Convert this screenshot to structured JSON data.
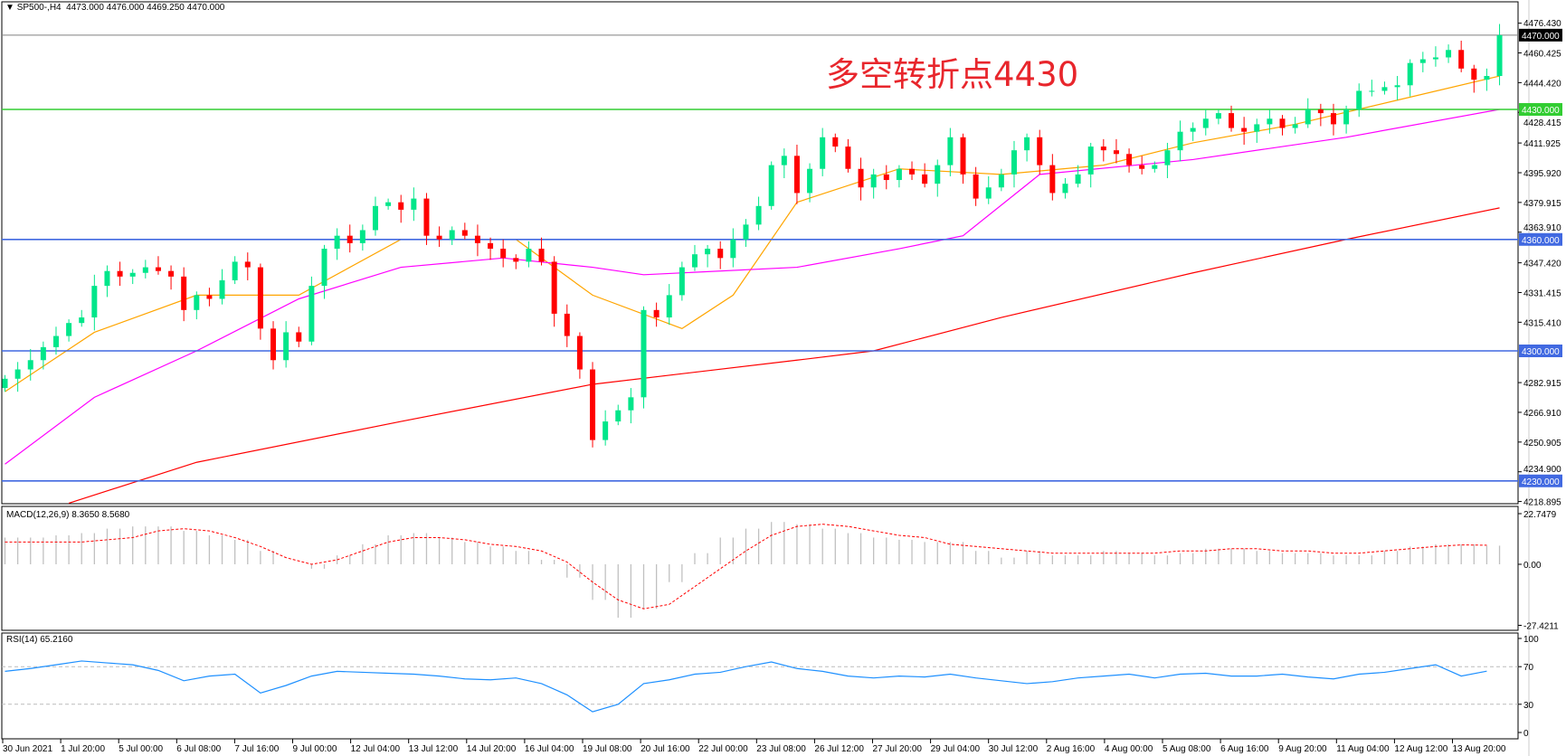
{
  "header": {
    "symbol": "SP500-,H4",
    "ohlc": "4473.000 4476.000 4469.250 4470.000",
    "collapse_icon": "triangle-down-icon"
  },
  "annotation": "多空转折点4430",
  "colors": {
    "bull": "#00e68a",
    "bear": "#ff0000",
    "ma_fast": "#ffa500",
    "ma_mid": "#ff00ff",
    "ma_slow": "#ff0000",
    "support_line": "#32cd32",
    "level_line": "#4169e1",
    "current_price": "#000000",
    "macd_hist": "#c0c0c0",
    "macd_signal": "#ff0000",
    "rsi": "#1e90ff"
  },
  "chart_data": [
    {
      "type": "candlestick",
      "title": "SP500-,H4",
      "ylim": [
        4218.895,
        4476.43
      ],
      "first_open": 4280,
      "close": [
        4285,
        4290,
        4295,
        4302,
        4308,
        4315,
        4318,
        4335,
        4343,
        4340,
        4342,
        4345,
        4343,
        4340,
        4322,
        4330,
        4328,
        4338,
        4348,
        4345,
        4312,
        4295,
        4310,
        4305,
        4335,
        4355,
        4362,
        4358,
        4365,
        4378,
        4380,
        4376,
        4382,
        4362,
        4360,
        4365,
        4362,
        4358,
        4355,
        4350,
        4348,
        4355,
        4348,
        4320,
        4308,
        4290,
        4252,
        4262,
        4268,
        4275,
        4322,
        4318,
        4330,
        4345,
        4352,
        4355,
        4350,
        4360,
        4368,
        4378,
        4400,
        4405,
        4385,
        4398,
        4415,
        4410,
        4398,
        4388,
        4395,
        4392,
        4398,
        4395,
        4390,
        4400,
        4415,
        4395,
        4382,
        4388,
        4395,
        4408,
        4415,
        4400,
        4385,
        4390,
        4395,
        4410,
        4408,
        4406,
        4400,
        4398,
        4400,
        4408,
        4418,
        4420,
        4425,
        4428,
        4420,
        4418,
        4422,
        4425,
        4420,
        4422,
        4430,
        4428,
        4422,
        4430,
        4440,
        4440,
        4442,
        4443,
        4455,
        4457,
        4458,
        4462,
        4452,
        4446,
        4448,
        4470
      ],
      "moving_averages": [
        {
          "key": "ma_fast",
          "points": [
            [
              0,
              4278
            ],
            [
              7,
              4310
            ],
            [
              15,
              4330
            ],
            [
              23,
              4330
            ],
            [
              31,
              4360
            ],
            [
              40,
              4360
            ],
            [
              46,
              4330
            ],
            [
              53,
              4312
            ],
            [
              57,
              4330
            ],
            [
              62,
              4380
            ],
            [
              70,
              4398
            ],
            [
              78,
              4395
            ],
            [
              86,
              4400
            ],
            [
              93,
              4412
            ],
            [
              101,
              4422
            ],
            [
              109,
              4435
            ],
            [
              117,
              4448
            ]
          ]
        },
        {
          "key": "ma_mid",
          "points": [
            [
              0,
              4239
            ],
            [
              7,
              4275
            ],
            [
              15,
              4300
            ],
            [
              23,
              4328
            ],
            [
              31,
              4345
            ],
            [
              39,
              4350
            ],
            [
              46,
              4345
            ],
            [
              50,
              4341
            ],
            [
              62,
              4345
            ],
            [
              70,
              4355
            ],
            [
              75,
              4362
            ],
            [
              81,
              4395
            ],
            [
              93,
              4403
            ],
            [
              105,
              4415
            ],
            [
              117,
              4430
            ]
          ]
        },
        {
          "key": "ma_slow",
          "points": [
            [
              5,
              4218
            ],
            [
              15,
              4240
            ],
            [
              31,
              4262
            ],
            [
              46,
              4282
            ],
            [
              62,
              4295
            ],
            [
              68,
              4300
            ],
            [
              78,
              4318
            ],
            [
              93,
              4342
            ],
            [
              105,
              4360
            ],
            [
              117,
              4377
            ]
          ]
        }
      ],
      "horizontal_lines": [
        {
          "price": 4470.0,
          "label": "4470.000",
          "kind": "current_price"
        },
        {
          "price": 4430.0,
          "label": "4430.000",
          "kind": "support_line"
        },
        {
          "price": 4360.0,
          "label": "4360.000",
          "kind": "level_line"
        },
        {
          "price": 4300.0,
          "label": "4300.000",
          "kind": "level_line"
        },
        {
          "price": 4230.0,
          "label": "4230.000",
          "kind": "level_line"
        }
      ],
      "y_ticks": [
        "4476.430",
        "4460.425",
        "4444.420",
        "4428.415",
        "4411.925",
        "4395.920",
        "4379.915",
        "4363.910",
        "4347.420",
        "4331.415",
        "4315.410",
        "4282.915",
        "4266.910",
        "4250.905",
        "4234.900",
        "4218.895"
      ]
    },
    {
      "type": "bar+line",
      "title": "MACD(12,26,9) 8.3650 8.5680",
      "ylim": [
        -27.4211,
        22.7479
      ],
      "y_ticks": [
        "22.7479",
        "0.00",
        "-27.4211"
      ],
      "histogram": [
        12,
        12,
        13,
        14,
        16,
        17,
        17,
        15,
        13,
        11,
        6,
        0,
        -2,
        4,
        9,
        13,
        14,
        12,
        10,
        8,
        6,
        2,
        -6,
        -16,
        -24,
        -20,
        -8,
        5,
        12,
        16,
        19,
        18,
        16,
        14,
        12,
        11,
        10,
        10,
        6,
        3,
        6,
        4,
        4,
        6,
        5,
        4,
        5,
        7,
        7,
        6,
        5,
        5,
        4,
        4,
        6,
        8,
        9,
        9,
        8.365
      ],
      "signal": [
        10,
        10,
        10,
        10,
        11,
        12,
        15,
        16,
        15,
        12,
        8,
        3,
        0,
        2,
        6,
        10,
        12,
        12,
        11,
        9,
        8,
        6,
        1,
        -8,
        -16,
        -20,
        -18,
        -10,
        -2,
        6,
        13,
        17,
        18,
        17,
        15,
        13,
        12,
        9,
        8,
        7,
        6,
        5,
        5,
        5,
        5,
        5,
        6,
        6,
        7,
        7,
        6,
        6,
        5,
        5,
        6,
        7,
        8,
        8.7,
        8.568
      ]
    },
    {
      "type": "line",
      "title": "RSI(14) 65.2160",
      "ylim": [
        0,
        100
      ],
      "y_ticks": [
        "100",
        "70",
        "30",
        "0"
      ],
      "levels": [
        70,
        30
      ],
      "values": [
        65,
        68,
        72,
        76,
        74,
        72,
        66,
        55,
        60,
        62,
        42,
        50,
        60,
        65,
        64,
        63,
        62,
        60,
        57,
        56,
        58,
        52,
        40,
        22,
        30,
        52,
        56,
        62,
        64,
        70,
        75,
        68,
        65,
        60,
        58,
        60,
        59,
        62,
        58,
        55,
        52,
        54,
        58,
        60,
        62,
        58,
        62,
        63,
        60,
        60,
        62,
        59,
        57,
        62,
        64,
        68,
        72,
        60,
        65.216
      ]
    }
  ],
  "x_axis": {
    "labels": [
      "30 Jun 2021",
      "1 Jul 20:00",
      "5 Jul 00:00",
      "6 Jul 08:00",
      "7 Jul 16:00",
      "9 Jul 00:00",
      "12 Jul 04:00",
      "13 Jul 12:00",
      "14 Jul 20:00",
      "16 Jul 04:00",
      "19 Jul 08:00",
      "20 Jul 16:00",
      "22 Jul 00:00",
      "23 Jul 08:00",
      "26 Jul 12:00",
      "27 Jul 20:00",
      "29 Jul 04:00",
      "30 Jul 12:00",
      "2 Aug 16:00",
      "4 Aug 00:00",
      "5 Aug 08:00",
      "6 Aug 16:00",
      "9 Aug 20:00",
      "11 Aug 04:00",
      "12 Aug 12:00",
      "13 Aug 20:00"
    ]
  }
}
